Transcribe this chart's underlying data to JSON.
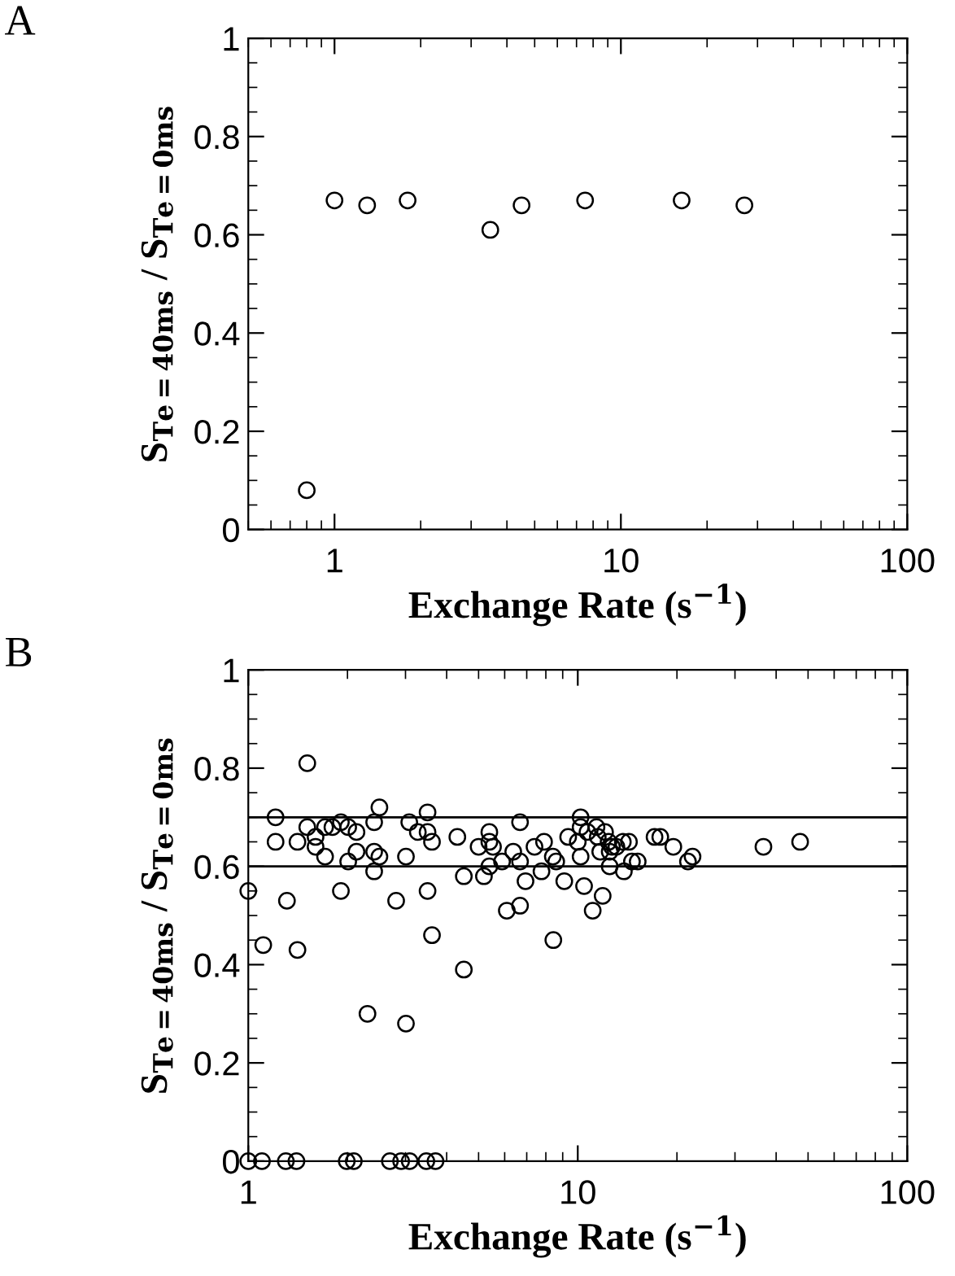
{
  "chart_data": [
    {
      "type": "scatter",
      "title": "A",
      "xlabel": "Exchange Rate (s$^{−1}$)",
      "ylabel": "S$_{Te=40ms}$ / S$_{Te=0ms}$",
      "log": "x",
      "xlim": [
        0.5,
        100
      ],
      "xticks": [
        1,
        10,
        100
      ],
      "ylim": [
        0,
        1
      ],
      "yticks": [
        0,
        0.2,
        0.4,
        0.6,
        0.8,
        1
      ],
      "marker": "circle",
      "grid": false,
      "legend": false,
      "series": [
        {
          "color": "#000000",
          "x": [
            0.8,
            1.0,
            1.3,
            1.8,
            3.5,
            4.5,
            7.5,
            16.3,
            27
          ],
          "values": [
            0.08,
            0.67,
            0.66,
            0.67,
            0.61,
            0.66,
            0.67,
            0.67,
            0.66
          ]
        }
      ]
    },
    {
      "type": "scatter",
      "title": "B",
      "xlabel": "Exchange Rate (s$^{−1}$)",
      "ylabel": "S$_{Te=40ms}$ / S$_{Te=0ms}$",
      "log": "x",
      "xlim": [
        1,
        100
      ],
      "xticks": [
        1,
        10,
        100
      ],
      "ylim": [
        0,
        1
      ],
      "yticks": [
        0,
        0.2,
        0.4,
        0.6,
        0.8,
        1
      ],
      "marker": "circle",
      "grid": false,
      "legend": false,
      "ref_lines": [
        {
          "axis": "y",
          "value": 0.7,
          "color": "#000000"
        },
        {
          "axis": "y",
          "value": 0.6,
          "color": "#000000"
        }
      ],
      "series": [
        {
          "color": "#000000",
          "x": [
            1,
            1.11,
            1.21,
            1.21,
            1.31,
            1.41,
            1.41,
            1.51,
            1.51,
            1.6,
            1.6,
            1.71,
            1.71,
            1.8,
            1.91,
            1.91,
            2.01,
            2.01,
            2.13,
            2.13,
            2.3,
            2.41,
            2.41,
            2.41,
            2.5,
            2.5,
            2.81,
            3.01,
            3.01,
            3.08,
            3.27,
            3.5,
            3.5,
            3.5,
            3.61,
            3.61,
            4.31,
            4.51,
            4.51,
            5.0,
            5.19,
            5.39,
            5.39,
            5.39,
            5.53,
            5.89,
            6.09,
            6.37,
            6.68,
            6.68,
            6.68,
            6.94,
            7.39,
            7.76,
            7.9,
            8.43,
            8.4,
            8.6,
            9.1,
            9.35,
            10.2,
            10.2,
            10.2,
            10.0,
            10.45,
            10.7,
            11.1,
            11.4,
            11.5,
            11.7,
            11.9,
            12.1,
            12.4,
            12.7,
            12.5,
            13.1,
            12.5,
            13.7,
            14.3,
            13.8,
            14.6,
            15.2,
            17.1,
            17.8,
            19.5,
            21.6,
            22.3,
            36.6,
            47.3,
            1,
            1.1,
            1.3,
            1.4,
            1.99,
            2.09,
            2.69,
            2.91,
            3.09,
            3.47,
            3.7
          ],
          "values": [
            0.55,
            0.44,
            0.7,
            0.65,
            0.53,
            0.43,
            0.65,
            0.81,
            0.68,
            0.66,
            0.64,
            0.62,
            0.68,
            0.68,
            0.55,
            0.69,
            0.68,
            0.61,
            0.67,
            0.63,
            0.3,
            0.69,
            0.63,
            0.59,
            0.72,
            0.62,
            0.53,
            0.62,
            0.28,
            0.69,
            0.67,
            0.71,
            0.67,
            0.55,
            0.46,
            0.65,
            0.66,
            0.58,
            0.39,
            0.64,
            0.58,
            0.67,
            0.65,
            0.6,
            0.64,
            0.61,
            0.51,
            0.63,
            0.69,
            0.61,
            0.52,
            0.57,
            0.64,
            0.59,
            0.65,
            0.45,
            0.62,
            0.61,
            0.57,
            0.66,
            0.7,
            0.68,
            0.62,
            0.65,
            0.56,
            0.67,
            0.51,
            0.68,
            0.66,
            0.63,
            0.54,
            0.67,
            0.65,
            0.64,
            0.63,
            0.64,
            0.6,
            0.65,
            0.65,
            0.59,
            0.61,
            0.61,
            0.66,
            0.66,
            0.64,
            0.61,
            0.62,
            0.64,
            0.65,
            0,
            0,
            0,
            0,
            0,
            0,
            0,
            0,
            0,
            0,
            0
          ]
        }
      ]
    }
  ]
}
